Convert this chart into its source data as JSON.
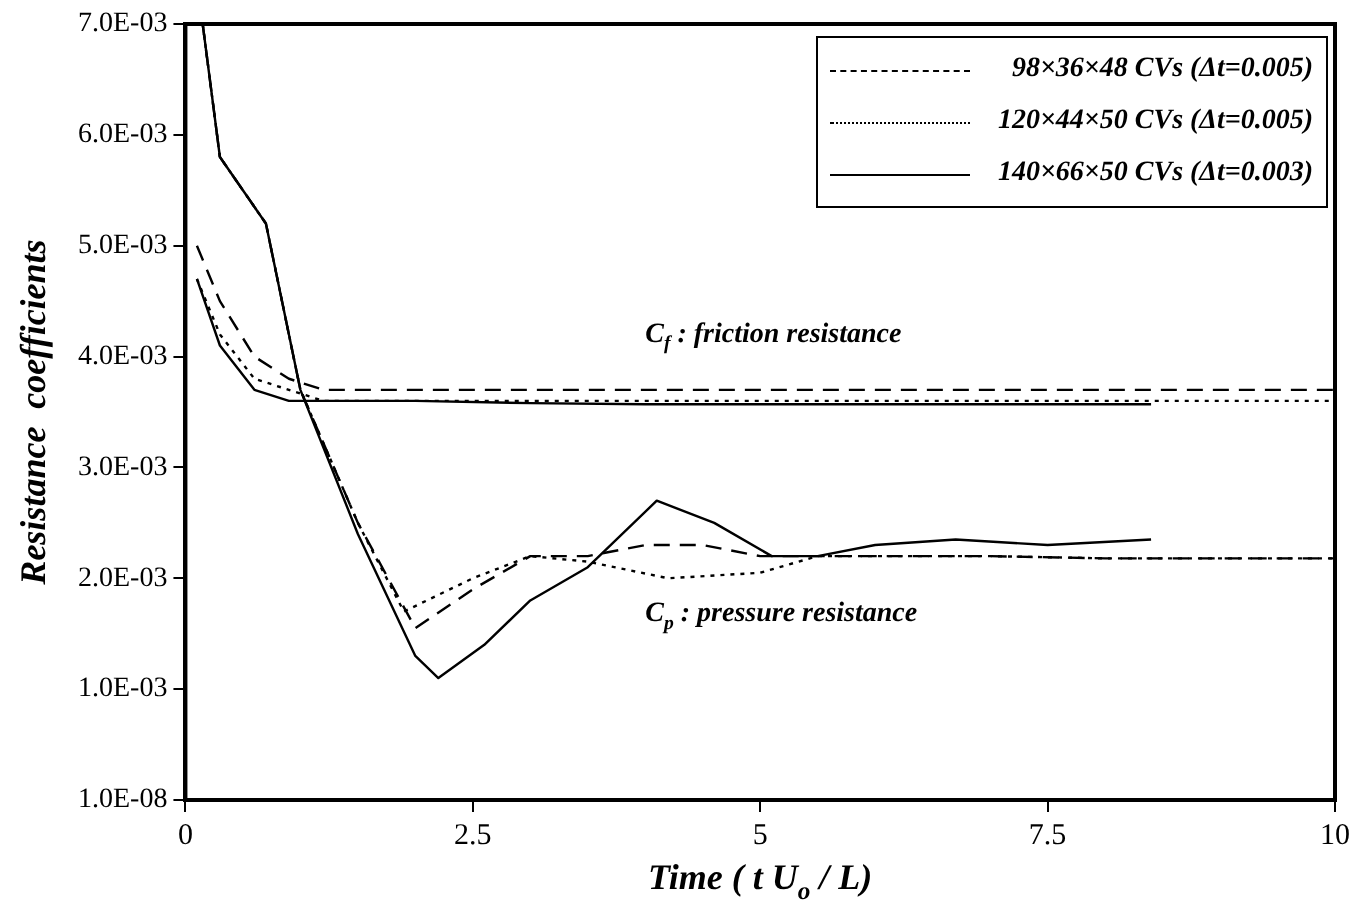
{
  "chart_data": {
    "type": "line",
    "xlabel": "Time ( t U$_{o}$ / L)",
    "ylabel": "Resistance  coefficients",
    "xlim": [
      0,
      10
    ],
    "xticks": [
      0,
      2.5,
      5,
      7.5,
      10
    ],
    "ylim": [
      1e-08,
      0.007
    ],
    "yticks": [
      {
        "value": 1e-08,
        "label": "1.0E-08"
      },
      {
        "value": 0.001,
        "label": "1.0E-03"
      },
      {
        "value": 0.002,
        "label": "2.0E-03"
      },
      {
        "value": 0.003,
        "label": "3.0E-03"
      },
      {
        "value": 0.004,
        "label": "4.0E-03"
      },
      {
        "value": 0.005,
        "label": "5.0E-03"
      },
      {
        "value": 0.006,
        "label": "6.0E-03"
      },
      {
        "value": 0.007,
        "label": "7.0E-03"
      }
    ],
    "grid": false,
    "legend": "top right",
    "marker": "none",
    "series": [
      {
        "name": "98×36×48 CVs (Δt=0.005)",
        "color": "#000000",
        "line_style": "dashed",
        "x": [
          0.1,
          0.3,
          0.6,
          0.9,
          1.2,
          2,
          3,
          4,
          5,
          6,
          7,
          8,
          9,
          10
        ],
        "values": [
          0.005,
          0.0045,
          0.004,
          0.0038,
          0.0037,
          0.0037,
          0.0037,
          0.0037,
          0.0037,
          0.0037,
          0.0037,
          0.0037,
          0.0037,
          0.0037
        ]
      },
      {
        "name": "120×44×50 CVs (Δt=0.005)",
        "color": "#000000",
        "line_style": "dotted",
        "x": [
          0.1,
          0.3,
          0.6,
          0.9,
          1.2,
          2,
          3,
          4,
          5,
          6,
          7,
          8,
          9,
          10
        ],
        "values": [
          0.0047,
          0.0042,
          0.0038,
          0.0037,
          0.0036,
          0.0036,
          0.0036,
          0.0036,
          0.0036,
          0.0036,
          0.0036,
          0.0036,
          0.0036,
          0.0036
        ]
      },
      {
        "name": "140×66×50 CVs (Δt=0.003)",
        "color": "#000000",
        "line_style": "solid",
        "x": [
          0.1,
          0.3,
          0.6,
          0.9,
          1.2,
          2,
          3,
          4,
          5,
          6,
          7,
          8,
          8.4
        ],
        "values": [
          0.0047,
          0.0041,
          0.0037,
          0.0036,
          0.0036,
          0.0036,
          0.00358,
          0.00357,
          0.00357,
          0.00357,
          0.00357,
          0.00357,
          0.00357
        ]
      },
      {
        "color": "#000000",
        "line_style": "dashed",
        "x": [
          0.15,
          0.3,
          0.5,
          0.7,
          1,
          1.5,
          2,
          2.5,
          3,
          3.5,
          4,
          4.5,
          5,
          6,
          7,
          8,
          9,
          10
        ],
        "values": [
          0.007,
          0.0058,
          0.0055,
          0.0052,
          0.0037,
          0.0025,
          0.00155,
          0.0019,
          0.0022,
          0.0022,
          0.0023,
          0.0023,
          0.0022,
          0.0022,
          0.0022,
          0.00218,
          0.00218,
          0.00218
        ]
      },
      {
        "color": "#000000",
        "line_style": "dotted",
        "x": [
          0.15,
          0.3,
          0.5,
          0.7,
          1,
          1.5,
          1.9,
          2.5,
          3,
          3.5,
          4.2,
          5,
          5.5,
          6,
          7,
          8,
          9,
          10
        ],
        "values": [
          0.007,
          0.0058,
          0.0055,
          0.0052,
          0.0037,
          0.0025,
          0.0017,
          0.002,
          0.0022,
          0.00215,
          0.002,
          0.00205,
          0.0022,
          0.0022,
          0.0022,
          0.00218,
          0.00218,
          0.00218
        ]
      },
      {
        "color": "#000000",
        "line_style": "solid",
        "x": [
          0.15,
          0.3,
          0.5,
          0.7,
          1,
          1.5,
          2,
          2.2,
          2.6,
          3,
          3.5,
          4.1,
          4.6,
          5.1,
          5.5,
          6,
          6.7,
          7.5,
          8.4
        ],
        "values": [
          0.007,
          0.0058,
          0.0055,
          0.0052,
          0.0037,
          0.0024,
          0.0013,
          0.0011,
          0.0014,
          0.0018,
          0.0021,
          0.0027,
          0.0025,
          0.0022,
          0.0022,
          0.0023,
          0.00235,
          0.0023,
          0.00235
        ]
      }
    ],
    "annotations": [
      "C$_{f}$ : friction resistance",
      "C$_{p}$ : pressure resistance"
    ]
  }
}
